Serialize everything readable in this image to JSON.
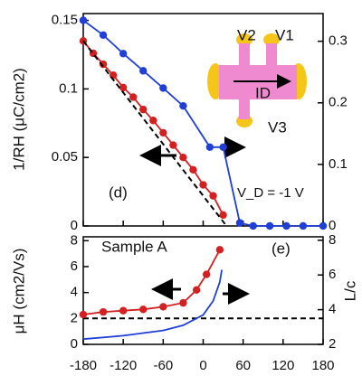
{
  "chart_data": [
    {
      "type": "line",
      "ylabel": "1/RH (μC/cm2)",
      "annotations": [
        "(d)",
        "V_D = -1 V"
      ],
      "diagram_labels": [
        "V2",
        "V1",
        "ID",
        "V3"
      ],
      "xlim": [
        -180,
        180
      ],
      "xticks": [
        -180,
        -120,
        -60,
        0,
        60,
        120,
        180
      ],
      "xtick_labels": false,
      "ylim": [
        0,
        0.155
      ],
      "yticks": [
        0,
        0.05,
        0.1,
        0.15
      ],
      "y2lim": [
        0,
        0.345
      ],
      "y2ticks": [
        0,
        0.1,
        0.2,
        0.3
      ],
      "series": [
        {
          "color": "#d42020",
          "markers": true,
          "dash": false,
          "x": [
            -180,
            -165,
            -150,
            -135,
            -120,
            -105,
            -90,
            -75,
            -60,
            -45,
            -30,
            -15,
            0,
            15,
            30
          ],
          "values": [
            0.135,
            0.126,
            0.118,
            0.11,
            0.101,
            0.094,
            0.085,
            0.077,
            0.068,
            0.059,
            0.05,
            0.041,
            0.03,
            0.022,
            0.008
          ]
        },
        {
          "color": "#000000",
          "markers": false,
          "dash": true,
          "x": [
            -180,
            35
          ],
          "values": [
            0.135,
            0
          ]
        },
        {
          "color": "#1f3fd6",
          "markers": true,
          "dash": false,
          "axis": "y2",
          "x": [
            -180,
            -150,
            -120,
            -90,
            -60,
            -30,
            10,
            30,
            55,
            75,
            100,
            125,
            150,
            180
          ],
          "values": [
            0.334,
            0.31,
            0.28,
            0.252,
            0.224,
            0.195,
            0.128,
            0.128,
            0.005,
            0,
            0,
            0,
            0,
            0
          ]
        }
      ]
    },
    {
      "type": "line",
      "ylabel": "μH (cm2/Vs)",
      "y2label": "L/c",
      "annotations": [
        "Sample A",
        "(e)"
      ],
      "xlim": [
        -180,
        180
      ],
      "xticks": [
        -180,
        -120,
        -60,
        0,
        60,
        120,
        180
      ],
      "xtick_labels": true,
      "ylim": [
        0,
        8.3
      ],
      "yticks": [
        0,
        2,
        4,
        6,
        8
      ],
      "y2lim": [
        2,
        8.2
      ],
      "y2ticks": [
        2,
        4,
        6,
        8
      ],
      "series": [
        {
          "color": "#000000",
          "markers": false,
          "dash": true,
          "x": [
            -180,
            180
          ],
          "values": [
            2,
            2
          ]
        },
        {
          "color": "#d42020",
          "markers": true,
          "dash": false,
          "x": [
            -180,
            -150,
            -120,
            -90,
            -60,
            -30,
            -10,
            5,
            25
          ],
          "values": [
            2.3,
            2.5,
            2.6,
            2.7,
            2.9,
            3.2,
            4.2,
            5.4,
            7.3
          ]
        },
        {
          "color": "#1f3fd6",
          "markers": false,
          "dash": false,
          "axis": "y2",
          "x": [
            -180,
            -120,
            -60,
            -30,
            0,
            15,
            25,
            28
          ],
          "values": [
            2.3,
            2.5,
            2.8,
            3.1,
            3.7,
            4.5,
            5.6,
            6.3
          ]
        }
      ]
    }
  ]
}
